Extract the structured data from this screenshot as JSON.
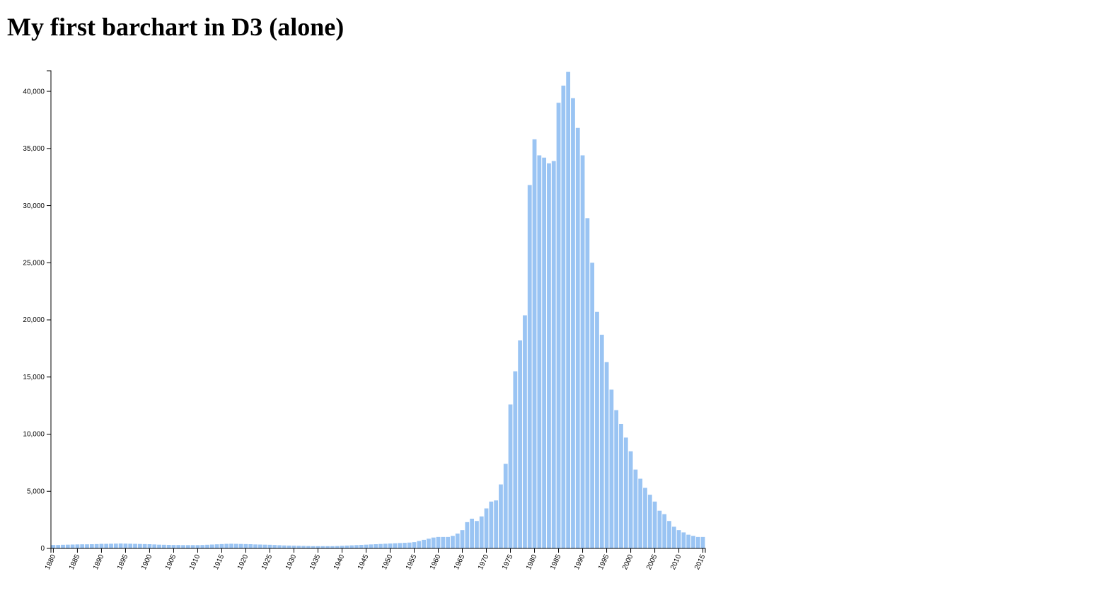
{
  "title": "My first barchart in D3 (alone)",
  "colors": {
    "bar": "#9ac4f3",
    "axis": "#000000",
    "background": "#ffffff"
  },
  "chart_data": {
    "type": "bar",
    "title": "My first barchart in D3 (alone)",
    "xlabel": "",
    "ylabel": "",
    "ylim": [
      0,
      41800
    ],
    "grid": false,
    "legend": "none",
    "y_ticks": [
      0,
      5000,
      10000,
      15000,
      20000,
      25000,
      30000,
      35000,
      40000
    ],
    "x_tick_labels": [
      "1880",
      "1885",
      "1890",
      "1895",
      "1900",
      "1905",
      "1910",
      "1915",
      "1920",
      "1925",
      "1930",
      "1935",
      "1940",
      "1945",
      "1950",
      "1955",
      "1960",
      "1965",
      "1970",
      "1975",
      "1980",
      "1985",
      "1990",
      "1995",
      "2000",
      "2005",
      "2010",
      "2015"
    ],
    "categories": [
      1880,
      1881,
      1882,
      1883,
      1884,
      1885,
      1886,
      1887,
      1888,
      1889,
      1890,
      1891,
      1892,
      1893,
      1894,
      1895,
      1896,
      1897,
      1898,
      1899,
      1900,
      1901,
      1902,
      1903,
      1904,
      1905,
      1906,
      1907,
      1908,
      1909,
      1910,
      1911,
      1912,
      1913,
      1914,
      1915,
      1916,
      1917,
      1918,
      1919,
      1920,
      1921,
      1922,
      1923,
      1924,
      1925,
      1926,
      1927,
      1928,
      1929,
      1930,
      1931,
      1932,
      1933,
      1934,
      1935,
      1936,
      1937,
      1938,
      1939,
      1940,
      1941,
      1942,
      1943,
      1944,
      1945,
      1946,
      1947,
      1948,
      1949,
      1950,
      1951,
      1952,
      1953,
      1954,
      1955,
      1956,
      1957,
      1958,
      1959,
      1960,
      1961,
      1962,
      1963,
      1964,
      1965,
      1966,
      1967,
      1968,
      1969,
      1970,
      1971,
      1972,
      1973,
      1974,
      1975,
      1976,
      1977,
      1978,
      1979,
      1980,
      1981,
      1982,
      1983,
      1984,
      1985,
      1986,
      1987,
      1988,
      1989,
      1990,
      1991,
      1992,
      1993,
      1994,
      1995,
      1996,
      1997,
      1998,
      1999,
      2000,
      2001,
      2002,
      2003,
      2004,
      2005,
      2006,
      2007,
      2008,
      2009,
      2010,
      2011,
      2012,
      2013,
      2014,
      2015
    ],
    "values": [
      300,
      300,
      320,
      330,
      340,
      350,
      360,
      360,
      370,
      380,
      400,
      400,
      410,
      420,
      430,
      420,
      410,
      400,
      390,
      380,
      370,
      350,
      330,
      320,
      310,
      300,
      300,
      290,
      290,
      290,
      290,
      300,
      320,
      340,
      360,
      380,
      400,
      410,
      400,
      390,
      380,
      370,
      350,
      340,
      330,
      320,
      300,
      280,
      260,
      250,
      240,
      230,
      220,
      210,
      200,
      200,
      200,
      200,
      200,
      210,
      230,
      250,
      270,
      290,
      310,
      330,
      350,
      370,
      390,
      410,
      430,
      450,
      470,
      490,
      510,
      550,
      650,
      750,
      850,
      950,
      1000,
      1000,
      1000,
      1100,
      1300,
      1600,
      2300,
      2600,
      2400,
      2800,
      3500,
      4100,
      4200,
      5600,
      7400,
      12600,
      15500,
      18200,
      20400,
      31800,
      35800,
      34400,
      34200,
      33700,
      33900,
      39000,
      40500,
      41700,
      39400,
      36800,
      34400,
      28900,
      25000,
      20700,
      18700,
      16300,
      13900,
      12100,
      10900,
      9700,
      8500,
      6900,
      6100,
      5300,
      4700,
      4100,
      3300,
      3000,
      2400,
      1900,
      1600,
      1400,
      1200,
      1100,
      1000,
      1000
    ]
  }
}
